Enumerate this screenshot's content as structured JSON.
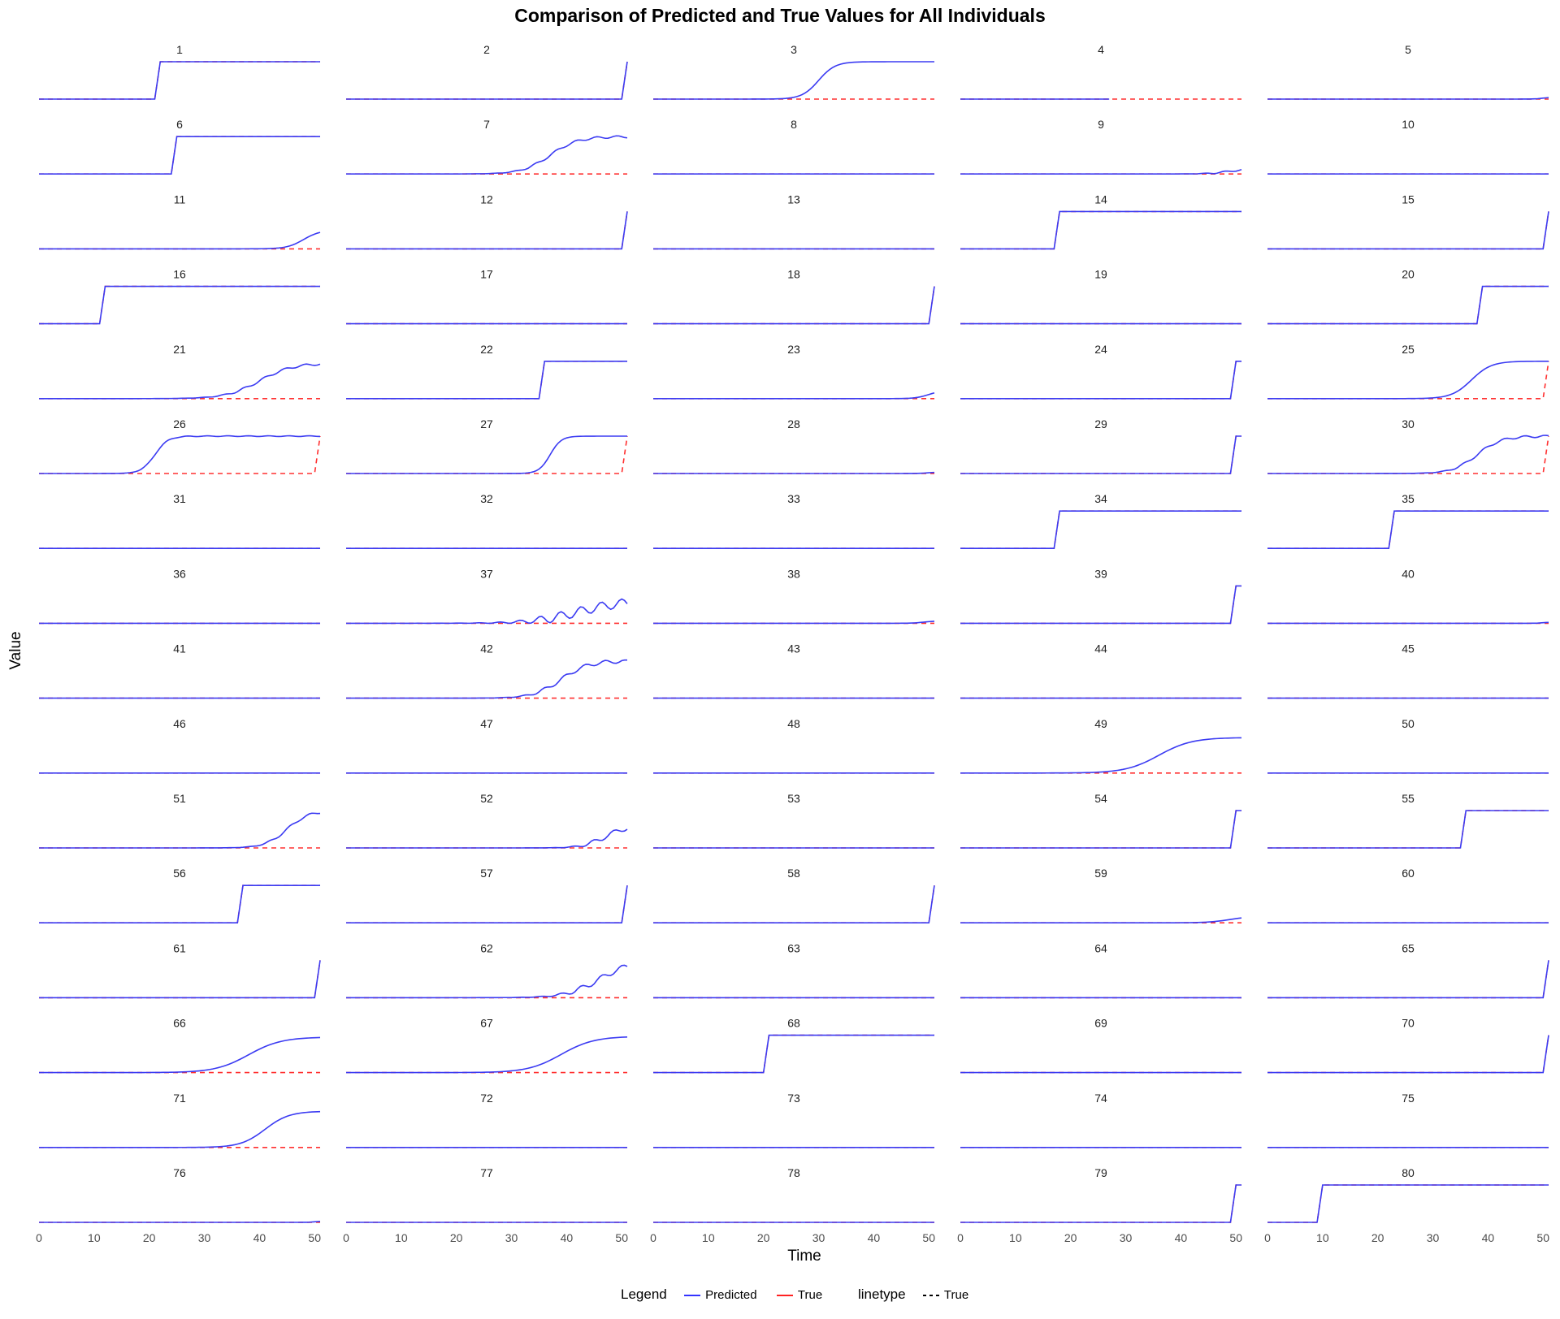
{
  "chart_data": {
    "type": "line",
    "title": "Comparison of Predicted and True Values for All Individuals",
    "xlabel": "Time",
    "ylabel": "Value",
    "xlim": [
      0,
      51
    ],
    "ylim": [
      0,
      1
    ],
    "x_ticks": [
      "0",
      "10",
      "20",
      "30",
      "40",
      "50"
    ],
    "facets_cols": 5,
    "grid": false,
    "legend_position": "bottom",
    "legend": {
      "color_title": "Legend",
      "linetype_title": "linetype",
      "entries": [
        {
          "label": "Predicted",
          "color": "#3333ff",
          "linetype": "solid"
        },
        {
          "label": "True",
          "color": "#ff2222",
          "linetype": "solid"
        }
      ],
      "linetype_entries": [
        {
          "label": "True",
          "linetype": "dashed"
        }
      ]
    },
    "series_colors": {
      "predicted": "#3b3bf2",
      "true": "#ff3030"
    },
    "panels": [
      {
        "label": "1",
        "true_step": 21,
        "pred": {
          "type": "step",
          "t": 21
        }
      },
      {
        "label": "2",
        "true_step": 50,
        "pred": {
          "type": "step",
          "t": 50
        }
      },
      {
        "label": "3",
        "true_step": null,
        "pred": {
          "type": "sig",
          "t": 30,
          "w": 1.5,
          "amp": 1
        }
      },
      {
        "label": "4",
        "true_step": null,
        "pred": {
          "type": "flat"
        },
        "pred_end": 27
      },
      {
        "label": "5",
        "true_step": null,
        "pred": {
          "type": "sig",
          "t": 50,
          "w": 0.8,
          "amp": 0.05
        }
      },
      {
        "label": "6",
        "true_step": 24,
        "pred": {
          "type": "step",
          "t": 24
        }
      },
      {
        "label": "7",
        "true_step": null,
        "pred": {
          "type": "sig",
          "t": 37,
          "w": 2.5,
          "amp": 1,
          "noise": 0.03
        }
      },
      {
        "label": "8",
        "true_step": null,
        "pred": {
          "type": "flat"
        }
      },
      {
        "label": "9",
        "true_step": null,
        "pred": {
          "type": "sig",
          "t": 49,
          "w": 2,
          "amp": 0.15,
          "noise": 0.02
        }
      },
      {
        "label": "10",
        "true_step": null,
        "pred": {
          "type": "flat"
        }
      },
      {
        "label": "11",
        "true_step": null,
        "pred": {
          "type": "sig",
          "t": 48,
          "w": 1.5,
          "amp": 0.5
        }
      },
      {
        "label": "12",
        "true_step": 50,
        "pred": {
          "type": "step",
          "t": 50
        }
      },
      {
        "label": "13",
        "true_step": null,
        "pred": {
          "type": "flat"
        }
      },
      {
        "label": "14",
        "true_step": 17,
        "pred": {
          "type": "step",
          "t": 17
        }
      },
      {
        "label": "15",
        "true_step": 50,
        "pred": {
          "type": "step",
          "t": 50
        }
      },
      {
        "label": "16",
        "true_step": 11,
        "pred": {
          "type": "step",
          "t": 11
        }
      },
      {
        "label": "17",
        "true_step": null,
        "pred": {
          "type": "flat"
        }
      },
      {
        "label": "18",
        "true_step": 50,
        "pred": {
          "type": "step",
          "t": 50
        }
      },
      {
        "label": "19",
        "true_step": null,
        "pred": {
          "type": "flat"
        }
      },
      {
        "label": "20",
        "true_step": 38,
        "pred": {
          "type": "step",
          "t": 38
        }
      },
      {
        "label": "21",
        "true_step": null,
        "pred": {
          "type": "sig",
          "t": 40,
          "w": 3,
          "amp": 0.95,
          "noise": 0.03
        }
      },
      {
        "label": "22",
        "true_step": 35,
        "pred": {
          "type": "step",
          "t": 35
        }
      },
      {
        "label": "23",
        "true_step": null,
        "pred": {
          "type": "sig",
          "t": 50,
          "w": 1.2,
          "amp": 0.22
        }
      },
      {
        "label": "24",
        "true_step": 49,
        "pred": {
          "type": "step",
          "t": 49
        }
      },
      {
        "label": "25",
        "true_step": 50,
        "pred": {
          "type": "sig",
          "t": 37,
          "w": 1.8,
          "amp": 1
        }
      },
      {
        "label": "26",
        "true_step": 50,
        "pred": {
          "type": "sig",
          "t": 21,
          "w": 1.2,
          "amp": 1,
          "noise": 0.01
        }
      },
      {
        "label": "27",
        "true_step": 50,
        "pred": {
          "type": "sig",
          "t": 37,
          "w": 1,
          "amp": 1
        }
      },
      {
        "label": "28",
        "true_step": null,
        "pred": {
          "type": "sig",
          "t": 50,
          "w": 1,
          "amp": 0.04
        }
      },
      {
        "label": "29",
        "true_step": 49,
        "pred": {
          "type": "step",
          "t": 49
        }
      },
      {
        "label": "30",
        "true_step": 50,
        "pred": {
          "type": "sig",
          "t": 38,
          "w": 2.2,
          "amp": 1,
          "noise": 0.03
        }
      },
      {
        "label": "31",
        "true_step": null,
        "pred": {
          "type": "flat"
        }
      },
      {
        "label": "32",
        "true_step": null,
        "pred": {
          "type": "flat"
        }
      },
      {
        "label": "33",
        "true_step": null,
        "pred": {
          "type": "flat"
        }
      },
      {
        "label": "34",
        "true_step": 17,
        "pred": {
          "type": "step",
          "t": 17
        }
      },
      {
        "label": "35",
        "true_step": 22,
        "pred": {
          "type": "step",
          "t": 22
        }
      },
      {
        "label": "36",
        "true_step": null,
        "pred": {
          "type": "flat"
        }
      },
      {
        "label": "37",
        "true_step": null,
        "pred": {
          "type": "sig",
          "t": 42,
          "w": 4,
          "amp": 0.6,
          "noise": 0.12
        }
      },
      {
        "label": "38",
        "true_step": null,
        "pred": {
          "type": "sig",
          "t": 49,
          "w": 1,
          "amp": 0.06
        }
      },
      {
        "label": "39",
        "true_step": 49,
        "pred": {
          "type": "step",
          "t": 49
        }
      },
      {
        "label": "40",
        "true_step": null,
        "pred": {
          "type": "sig",
          "t": 50,
          "w": 0.6,
          "amp": 0.03
        }
      },
      {
        "label": "41",
        "true_step": null,
        "pred": {
          "type": "flat"
        }
      },
      {
        "label": "42",
        "true_step": null,
        "pred": {
          "type": "sig",
          "t": 39,
          "w": 2.5,
          "amp": 1,
          "noise": 0.05
        }
      },
      {
        "label": "43",
        "true_step": null,
        "pred": {
          "type": "flat"
        }
      },
      {
        "label": "44",
        "true_step": null,
        "pred": {
          "type": "flat"
        }
      },
      {
        "label": "45",
        "true_step": null,
        "pred": {
          "type": "flat"
        }
      },
      {
        "label": "46",
        "true_step": null,
        "pred": {
          "type": "flat"
        }
      },
      {
        "label": "47",
        "true_step": null,
        "pred": {
          "type": "flat"
        }
      },
      {
        "label": "48",
        "true_step": null,
        "pred": {
          "type": "flat"
        }
      },
      {
        "label": "49",
        "true_step": null,
        "pred": {
          "type": "sig",
          "t": 36,
          "w": 3,
          "amp": 0.95
        }
      },
      {
        "label": "50",
        "true_step": null,
        "pred": {
          "type": "flat"
        }
      },
      {
        "label": "51",
        "true_step": null,
        "pred": {
          "type": "sig",
          "t": 45,
          "w": 2,
          "amp": 1,
          "noise": 0.03
        }
      },
      {
        "label": "52",
        "true_step": null,
        "pred": {
          "type": "sig",
          "t": 47,
          "w": 2,
          "amp": 0.6,
          "noise": 0.06
        }
      },
      {
        "label": "53",
        "true_step": null,
        "pred": {
          "type": "flat"
        }
      },
      {
        "label": "54",
        "true_step": 49,
        "pred": {
          "type": "step",
          "t": 49
        }
      },
      {
        "label": "55",
        "true_step": 35,
        "pred": {
          "type": "step",
          "t": 35
        }
      },
      {
        "label": "56",
        "true_step": 36,
        "pred": {
          "type": "step",
          "t": 36
        }
      },
      {
        "label": "57",
        "true_step": 50,
        "pred": {
          "type": "step",
          "t": 50
        }
      },
      {
        "label": "58",
        "true_step": 50,
        "pred": {
          "type": "step",
          "t": 50
        }
      },
      {
        "label": "59",
        "true_step": null,
        "pred": {
          "type": "sig",
          "t": 49,
          "w": 2,
          "amp": 0.18
        }
      },
      {
        "label": "60",
        "true_step": null,
        "pred": {
          "type": "flat"
        }
      },
      {
        "label": "61",
        "true_step": 50,
        "pred": {
          "type": "step",
          "t": 50
        }
      },
      {
        "label": "62",
        "true_step": null,
        "pred": {
          "type": "sig",
          "t": 46,
          "w": 3,
          "amp": 1,
          "noise": 0.07
        }
      },
      {
        "label": "63",
        "true_step": null,
        "pred": {
          "type": "flat"
        }
      },
      {
        "label": "64",
        "true_step": null,
        "pred": {
          "type": "flat"
        }
      },
      {
        "label": "65",
        "true_step": 50,
        "pred": {
          "type": "step",
          "t": 50
        }
      },
      {
        "label": "66",
        "true_step": null,
        "pred": {
          "type": "sig",
          "t": 38,
          "w": 3,
          "amp": 0.95
        }
      },
      {
        "label": "67",
        "true_step": null,
        "pred": {
          "type": "sig",
          "t": 39,
          "w": 3,
          "amp": 0.97
        }
      },
      {
        "label": "68",
        "true_step": 20,
        "pred": {
          "type": "step",
          "t": 20
        }
      },
      {
        "label": "69",
        "true_step": null,
        "pred": {
          "type": "flat"
        }
      },
      {
        "label": "70",
        "true_step": 50,
        "pred": {
          "type": "step",
          "t": 50
        }
      },
      {
        "label": "71",
        "true_step": null,
        "pred": {
          "type": "sig",
          "t": 41,
          "w": 2.2,
          "amp": 0.97
        }
      },
      {
        "label": "72",
        "true_step": null,
        "pred": {
          "type": "flat"
        }
      },
      {
        "label": "73",
        "true_step": null,
        "pred": {
          "type": "flat"
        }
      },
      {
        "label": "74",
        "true_step": null,
        "pred": {
          "type": "flat"
        }
      },
      {
        "label": "75",
        "true_step": null,
        "pred": {
          "type": "flat"
        }
      },
      {
        "label": "76",
        "true_step": null,
        "pred": {
          "type": "sig",
          "t": 50,
          "w": 0.6,
          "amp": 0.03
        }
      },
      {
        "label": "77",
        "true_step": null,
        "pred": {
          "type": "flat"
        }
      },
      {
        "label": "78",
        "true_step": null,
        "pred": {
          "type": "flat"
        }
      },
      {
        "label": "79",
        "true_step": 49,
        "pred": {
          "type": "step",
          "t": 49
        }
      },
      {
        "label": "80",
        "true_step": 9,
        "pred": {
          "type": "step",
          "t": 9
        }
      }
    ]
  }
}
